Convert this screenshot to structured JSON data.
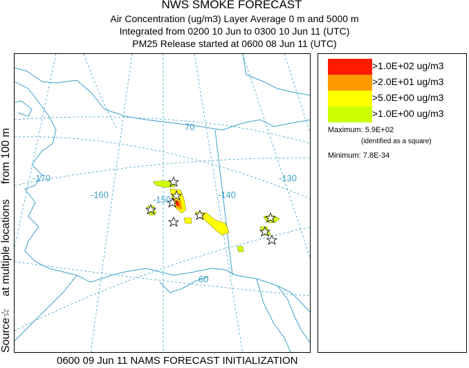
{
  "header": {
    "title": "NWS SMOKE FORECAST",
    "line1": "Air Concentration (ug/m3) Layer Average    0 m and  5000 m",
    "line2": "Integrated from 0200 10 Jun to 0300 10 Jun 11 (UTC)",
    "line3": "PM25 Release started at 0600 08 Jun 11 (UTC)"
  },
  "side_label": {
    "part1": "Source",
    "star": "☆",
    "part2": " at multiple locations",
    "part3": "from   100 m"
  },
  "map": {
    "graticule_labels": [
      "-170",
      "-160",
      "-150",
      "-140",
      "-130",
      "70",
      "60"
    ]
  },
  "legend": {
    "entries": [
      {
        "label": ">1.0E+02 ug/m3",
        "color": "#ff1a00"
      },
      {
        "label": ">2.0E+01 ug/m3",
        "color": "#ff9900"
      },
      {
        "label": ">5.0E+00 ug/m3",
        "color": "#ffff00"
      },
      {
        "label": ">1.0E+00 ug/m3",
        "color": "#ccff00"
      }
    ],
    "maximum_label": "Maximum:",
    "maximum_value": "5.9E+02",
    "maximum_note": "(identified as a square)",
    "minimum_label": "Minimum:",
    "minimum_value": "7.8E-34"
  },
  "footer": "0600 09 Jun 11 NAMS FORECAST INITIALIZATION"
}
